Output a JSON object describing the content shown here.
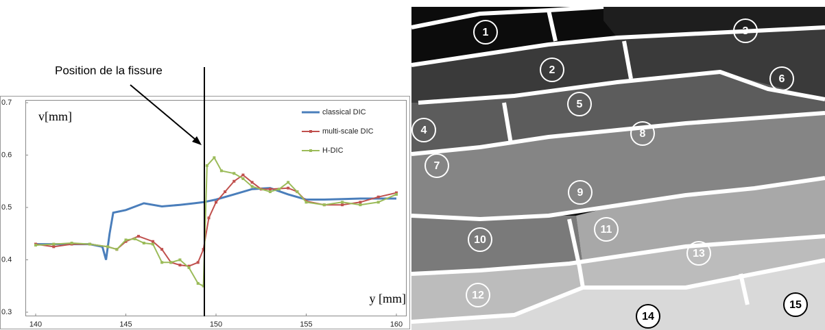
{
  "chart_data": {
    "type": "line",
    "annotation": "Position de la fissure",
    "ylabel": "v[mm]",
    "xlabel": "y [mm]",
    "xlim": [
      140,
      160
    ],
    "xticks": [
      140,
      145,
      150,
      155,
      160
    ],
    "ylim": [
      0.3,
      0.7
    ],
    "yticks": [
      0.3,
      0.4,
      0.5,
      0.6,
      0.7
    ],
    "legend": "upper right",
    "series": [
      {
        "name": "classical DIC",
        "color": "#4a7ebb",
        "markers": false,
        "x": [
          140,
          143,
          143.7,
          143.9,
          144.1,
          144.3,
          145,
          146,
          147,
          148,
          148.8,
          149.3,
          150,
          151,
          152,
          153,
          154,
          155,
          156,
          158,
          160
        ],
        "values": [
          0.43,
          0.43,
          0.425,
          0.4,
          0.45,
          0.49,
          0.495,
          0.508,
          0.502,
          0.505,
          0.508,
          0.51,
          0.515,
          0.525,
          0.535,
          0.537,
          0.525,
          0.515,
          0.515,
          0.517,
          0.517
        ]
      },
      {
        "name": "multi-scale DIC",
        "color": "#c0504d",
        "markers": true,
        "x": [
          140,
          141,
          142,
          143,
          144,
          144.5,
          145,
          145.7,
          146.5,
          147,
          147.5,
          148,
          148.5,
          149,
          149.3,
          149.6,
          150,
          150.5,
          151,
          151.5,
          152,
          152.5,
          153,
          154,
          154.5,
          155,
          156,
          157,
          158,
          159,
          160
        ],
        "values": [
          0.43,
          0.425,
          0.43,
          0.43,
          0.425,
          0.42,
          0.435,
          0.445,
          0.435,
          0.42,
          0.395,
          0.39,
          0.388,
          0.395,
          0.42,
          0.48,
          0.51,
          0.53,
          0.55,
          0.562,
          0.548,
          0.535,
          0.535,
          0.537,
          0.53,
          0.512,
          0.505,
          0.505,
          0.51,
          0.52,
          0.528
        ]
      },
      {
        "name": "H-DIC",
        "color": "#9bbb59",
        "markers": true,
        "x": [
          140,
          141,
          142,
          143,
          144,
          144.5,
          145,
          145.5,
          146,
          146.5,
          147,
          147.5,
          148,
          148.5,
          149,
          149.3,
          149.5,
          149.9,
          150.3,
          151,
          151.5,
          152,
          153,
          153.5,
          154,
          154.5,
          155,
          156,
          157,
          158,
          159,
          160
        ],
        "values": [
          0.428,
          0.43,
          0.432,
          0.43,
          0.425,
          0.42,
          0.438,
          0.44,
          0.432,
          0.43,
          0.395,
          0.395,
          0.4,
          0.385,
          0.355,
          0.35,
          0.58,
          0.595,
          0.57,
          0.565,
          0.555,
          0.54,
          0.53,
          0.535,
          0.548,
          0.53,
          0.51,
          0.505,
          0.51,
          0.505,
          0.51,
          0.525
        ]
      }
    ]
  },
  "grains": [
    "1",
    "2",
    "3",
    "4",
    "5",
    "6",
    "7",
    "8",
    "9",
    "10",
    "11",
    "12",
    "13",
    "14",
    "15"
  ]
}
